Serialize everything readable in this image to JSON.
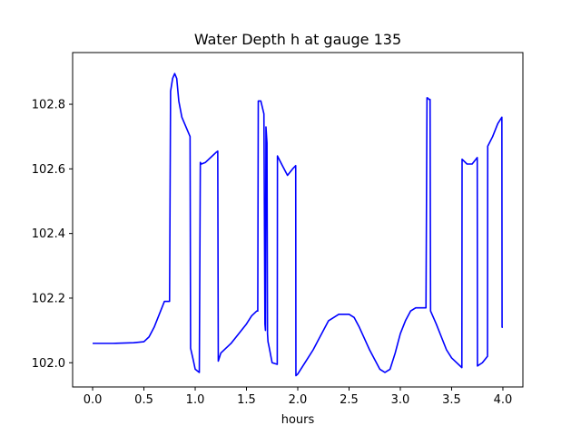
{
  "chart_data": {
    "type": "line",
    "title": "Water Depth h at gauge 135",
    "xlabel": "hours",
    "ylabel": "",
    "xlim": [
      -0.195,
      4.195
    ],
    "ylim": [
      101.925,
      102.96
    ],
    "x_ticks": [
      "0.0",
      "0.5",
      "1.0",
      "1.5",
      "2.0",
      "2.5",
      "3.0",
      "3.5",
      "4.0"
    ],
    "x_tick_values": [
      0.0,
      0.5,
      1.0,
      1.5,
      2.0,
      2.5,
      3.0,
      3.5,
      4.0
    ],
    "y_ticks": [
      "102.0",
      "102.2",
      "102.4",
      "102.6",
      "102.8"
    ],
    "y_tick_values": [
      102.0,
      102.2,
      102.4,
      102.6,
      102.8
    ],
    "grid": false,
    "series": [
      {
        "color": "#0000ff",
        "x": [
          0.0,
          0.2,
          0.4,
          0.5,
          0.55,
          0.6,
          0.65,
          0.7,
          0.75,
          0.76,
          0.78,
          0.8,
          0.82,
          0.84,
          0.87,
          0.95,
          0.955,
          0.98,
          1.0,
          1.04,
          1.05,
          1.06,
          1.1,
          1.15,
          1.2,
          1.22,
          1.225,
          1.25,
          1.3,
          1.35,
          1.4,
          1.45,
          1.5,
          1.55,
          1.6,
          1.61,
          1.615,
          1.64,
          1.67,
          1.68,
          1.685,
          1.69,
          1.7,
          1.705,
          1.71,
          1.72,
          1.75,
          1.8,
          1.802,
          1.85,
          1.9,
          1.95,
          1.98,
          1.982,
          2.0,
          2.05,
          2.1,
          2.15,
          2.2,
          2.3,
          2.4,
          2.5,
          2.55,
          2.6,
          2.7,
          2.8,
          2.85,
          2.9,
          2.95,
          3.0,
          3.05,
          3.1,
          3.15,
          3.2,
          3.25,
          3.26,
          3.265,
          3.28,
          3.29,
          3.295,
          3.35,
          3.4,
          3.45,
          3.5,
          3.6,
          3.602,
          3.65,
          3.7,
          3.75,
          3.752,
          3.8,
          3.85,
          3.852,
          3.9,
          3.95,
          3.99,
          3.992,
          4.0
        ],
        "y": [
          102.06,
          102.06,
          102.062,
          102.065,
          102.08,
          102.11,
          102.15,
          102.19,
          102.19,
          102.84,
          102.88,
          102.895,
          102.88,
          102.81,
          102.76,
          102.7,
          102.045,
          102.01,
          101.98,
          101.97,
          102.62,
          102.615,
          102.62,
          102.635,
          102.65,
          102.655,
          102.005,
          102.03,
          102.045,
          102.06,
          102.08,
          102.1,
          102.12,
          102.145,
          102.16,
          102.16,
          102.81,
          102.81,
          102.77,
          102.12,
          102.1,
          102.73,
          102.68,
          102.09,
          102.065,
          102.05,
          102.0,
          101.995,
          102.64,
          102.61,
          102.58,
          102.6,
          102.61,
          101.96,
          101.965,
          101.99,
          102.015,
          102.04,
          102.07,
          102.13,
          102.15,
          102.15,
          102.14,
          102.11,
          102.04,
          101.98,
          101.97,
          101.98,
          102.03,
          102.09,
          102.13,
          102.16,
          102.17,
          102.17,
          102.17,
          102.82,
          102.82,
          102.815,
          102.815,
          102.16,
          102.12,
          102.08,
          102.04,
          102.015,
          101.985,
          102.63,
          102.615,
          102.615,
          102.635,
          101.99,
          102.0,
          102.02,
          102.67,
          102.7,
          102.74,
          102.76,
          102.11,
          102.11
        ]
      }
    ]
  }
}
